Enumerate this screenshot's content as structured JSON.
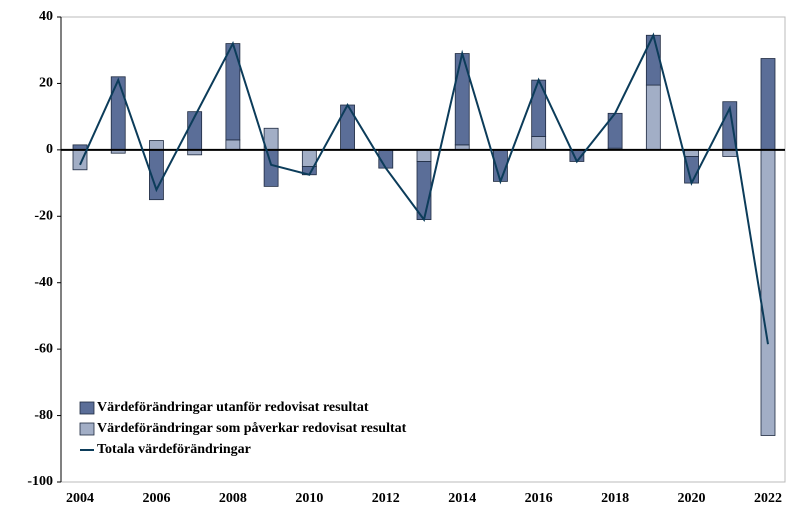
{
  "chart_data": {
    "type": "bar",
    "categories": [
      "2004",
      null,
      "2006",
      null,
      "2008",
      null,
      "2010",
      null,
      "2012",
      null,
      "2014",
      null,
      "2016",
      null,
      "2018",
      null,
      "2020",
      null,
      "2022"
    ],
    "series": [
      {
        "name": "Värdeförändringar utanför redovisat resultat",
        "color": "#5b6e98",
        "values": [
          1.5,
          22,
          -15,
          11.5,
          29,
          -11,
          -2.5,
          13.5,
          -5.5,
          -17.5,
          27.5,
          -9.5,
          17,
          -3.5,
          10.5,
          15,
          -8,
          14.5,
          27.5
        ]
      },
      {
        "name": "Värdeförändringar som påverkar redovisat resultat",
        "color": "#a2aec6",
        "values": [
          -6,
          -1,
          2.8,
          -1.5,
          3,
          6.5,
          -5,
          0,
          0,
          -3.5,
          1.5,
          0,
          4,
          0,
          0.5,
          19.5,
          -2,
          -2,
          -86
        ]
      },
      {
        "name": "Totala värdeförändringar",
        "type": "line",
        "color": "#0c3c5a",
        "values": [
          -4.5,
          21,
          -12,
          10,
          32,
          -4.5,
          -7.5,
          13.5,
          -5.5,
          -21,
          29,
          -9.5,
          21,
          -3.5,
          11,
          34.5,
          -10,
          12.5,
          -58.5
        ]
      }
    ],
    "ylim": [
      -100,
      40
    ],
    "yticks": [
      -100,
      -80,
      -60,
      -40,
      -20,
      0,
      20,
      40
    ],
    "legend": "lower left"
  }
}
